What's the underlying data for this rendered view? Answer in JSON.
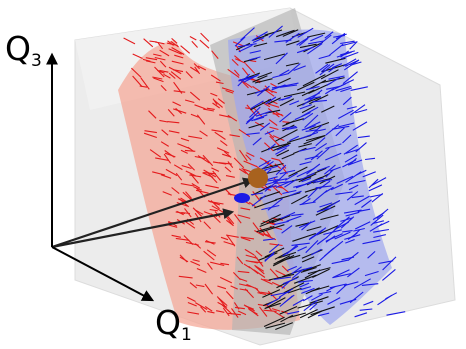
{
  "axes": {
    "vertical": {
      "letter": "Q",
      "index": "3"
    },
    "horizontal": {
      "letter": "Q",
      "index": "1"
    }
  },
  "colors": {
    "left_surface_fill": "#f4a898",
    "left_surface_arrows": "#e41a1c",
    "right_surface_fill": "#9ea6f0",
    "right_surface_arrows": "#1a1ae6",
    "middle_plane_fill": "#b4b4b4",
    "middle_plane_arrows": "#111111",
    "bounding_box": "#e6e6e6",
    "intersection_point": "#a8621e",
    "vectors": "#222222"
  },
  "icons": {
    "intersection_point": "filled-circle",
    "vector_arrow": "arrow"
  }
}
